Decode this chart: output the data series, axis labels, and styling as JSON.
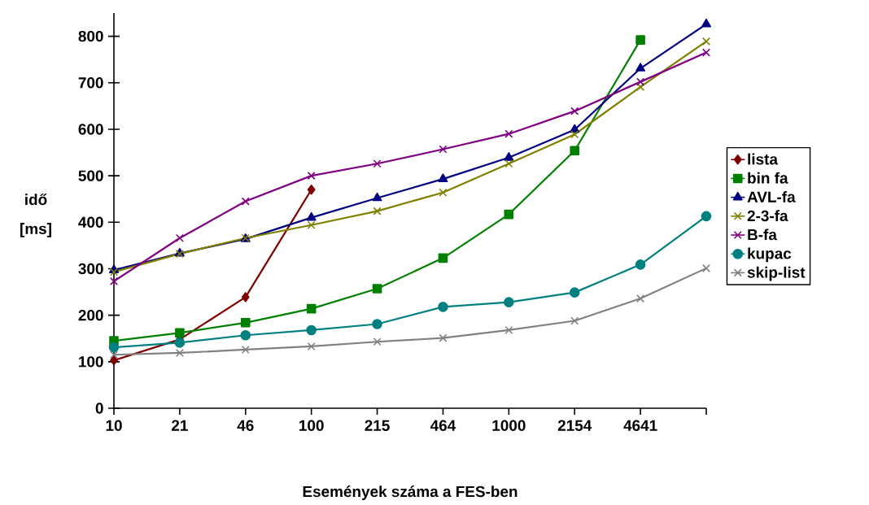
{
  "chart_data": {
    "type": "line",
    "xlabel": "Események száma a FES-ben",
    "ylabel": "idő [ms]",
    "categories": [
      "10",
      "21",
      "46",
      "100",
      "215",
      "464",
      "1000",
      "2154",
      "4641",
      null
    ],
    "series": [
      {
        "name": "lista",
        "color": "#800000",
        "marker": "diamond",
        "values": [
          103,
          148,
          239,
          470,
          null,
          null,
          null,
          null,
          null,
          null
        ]
      },
      {
        "name": "bin fa",
        "color": "#008000",
        "marker": "square",
        "values": [
          145,
          162,
          184,
          214,
          257,
          323,
          417,
          554,
          792,
          null
        ]
      },
      {
        "name": "AVL-fa",
        "color": "#000080",
        "marker": "triangle",
        "values": [
          297,
          333,
          364,
          410,
          452,
          493,
          539,
          599,
          731,
          826
        ]
      },
      {
        "name": "2-3-fa",
        "color": "#808000",
        "marker": "cross",
        "values": [
          293,
          332,
          366,
          394,
          424,
          464,
          526,
          589,
          691,
          789
        ]
      },
      {
        "name": "B-fa",
        "color": "#800080",
        "marker": "cross",
        "values": [
          273,
          366,
          445,
          500,
          526,
          557,
          590,
          639,
          702,
          765
        ]
      },
      {
        "name": "kupac",
        "color": "#008080",
        "marker": "circle",
        "values": [
          131,
          141,
          157,
          168,
          181,
          218,
          228,
          249,
          309,
          413
        ]
      },
      {
        "name": "skip-list",
        "color": "#808080",
        "marker": "cross",
        "values": [
          115,
          119,
          126,
          133,
          143,
          151,
          168,
          188,
          236,
          301
        ]
      }
    ],
    "ylim": [
      0,
      850
    ],
    "yticks": [
      0,
      100,
      200,
      300,
      400,
      500,
      600,
      700,
      800
    ],
    "legend": "right",
    "grid": false,
    "line_style": "solid"
  }
}
